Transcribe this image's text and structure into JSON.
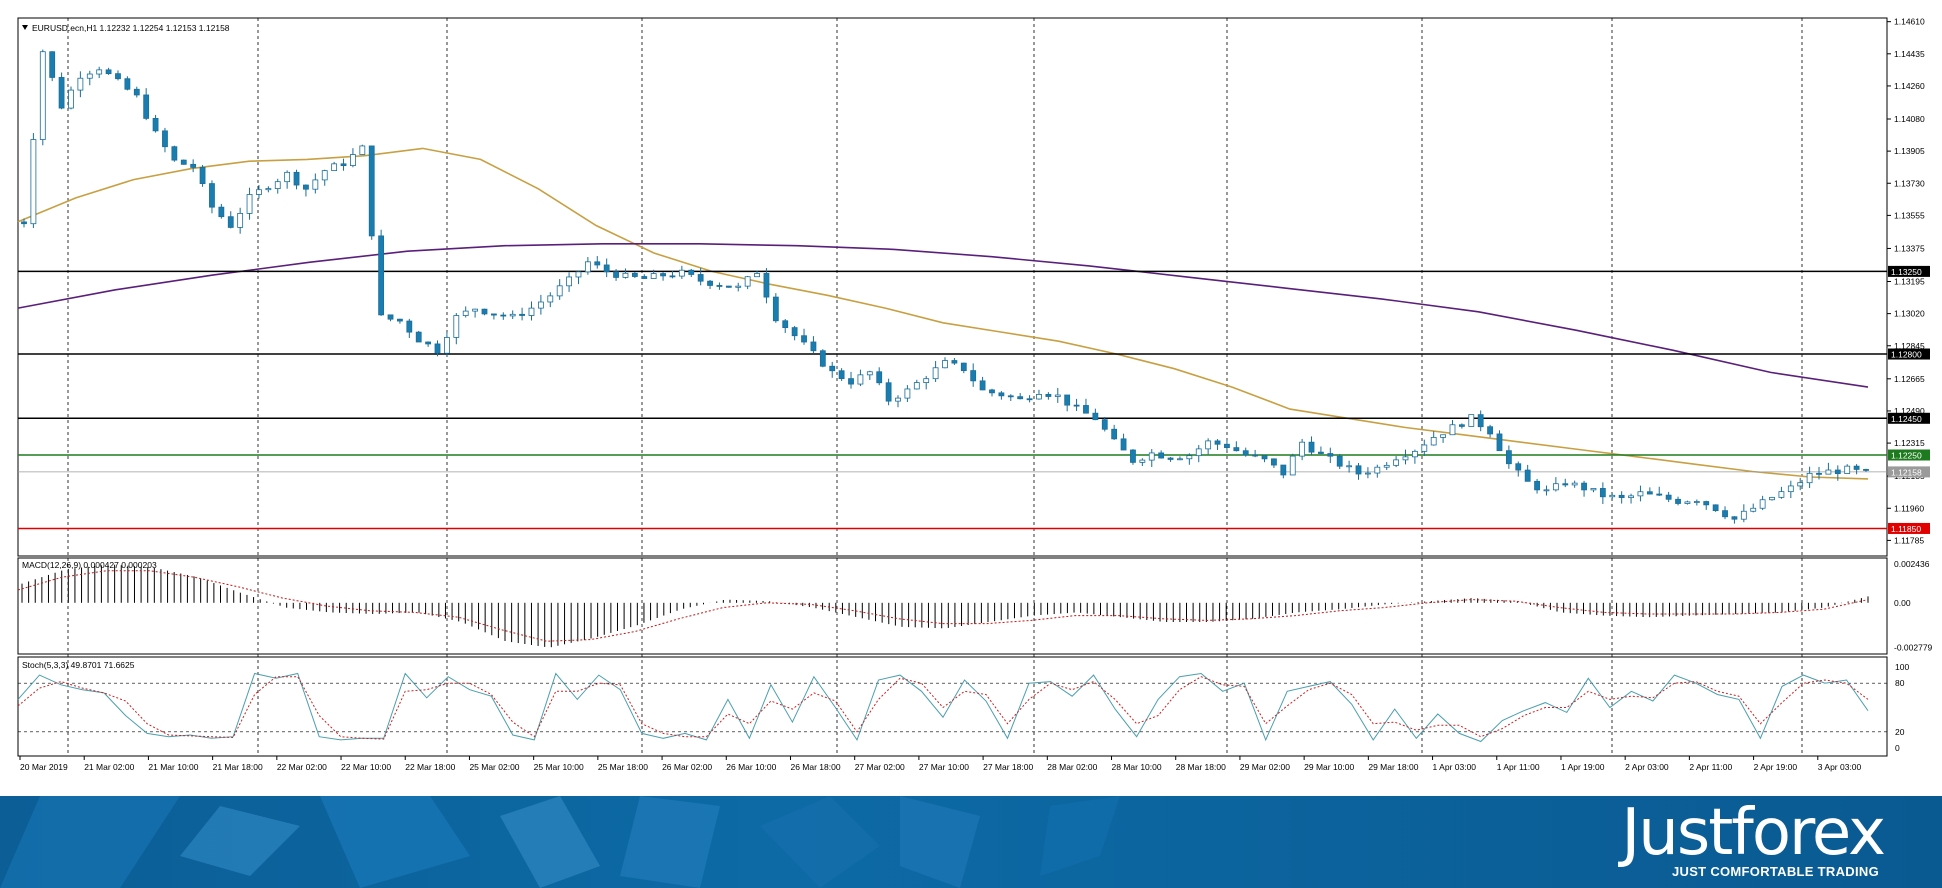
{
  "chart_data": [
    {
      "type": "candlestick",
      "symbol_label": "EURUSD.ecn,H1  1.12232 1.12254 1.12153 1.12158",
      "ohlc": {
        "open": 1.12232,
        "high": 1.12254,
        "low": 1.12153,
        "close": 1.12158
      },
      "ylim": [
        1.117,
        1.1463
      ],
      "y_ticks": [
        "1.14610",
        "1.14435",
        "1.14260",
        "1.14080",
        "1.13905",
        "1.13730",
        "1.13555",
        "1.13375",
        "1.13195",
        "1.13020",
        "1.12845",
        "1.12665",
        "1.12490",
        "1.12315",
        "1.12135",
        "1.11960",
        "1.11785"
      ],
      "x_ticks": [
        "20 Mar 2019",
        "21 Mar 02:00",
        "21 Mar 10:00",
        "21 Mar 18:00",
        "22 Mar 02:00",
        "22 Mar 10:00",
        "22 Mar 18:00",
        "25 Mar 02:00",
        "25 Mar 10:00",
        "25 Mar 18:00",
        "26 Mar 02:00",
        "26 Mar 10:00",
        "26 Mar 18:00",
        "27 Mar 02:00",
        "27 Mar 10:00",
        "27 Mar 18:00",
        "28 Mar 02:00",
        "28 Mar 10:00",
        "28 Mar 18:00",
        "29 Mar 02:00",
        "29 Mar 10:00",
        "29 Mar 18:00",
        "1 Apr 03:00",
        "1 Apr 11:00",
        "1 Apr 19:00",
        "2 Apr 03:00",
        "2 Apr 11:00",
        "2 Apr 19:00",
        "3 Apr 03:00"
      ],
      "price_path": [
        1.1352,
        1.1445,
        1.1415,
        1.1432,
        1.1436,
        1.1428,
        1.142,
        1.14,
        1.1385,
        1.1382,
        1.136,
        1.135,
        1.1365,
        1.1372,
        1.1378,
        1.137,
        1.138,
        1.1384,
        1.1392,
        1.13,
        1.1298,
        1.1288,
        1.1282,
        1.13,
        1.1305,
        1.1302,
        1.13,
        1.1305,
        1.1312,
        1.132,
        1.133,
        1.1325,
        1.1322,
        1.1321,
        1.1323,
        1.1324,
        1.132,
        1.1318,
        1.1316,
        1.1325,
        1.13,
        1.129,
        1.128,
        1.127,
        1.1265,
        1.127,
        1.1255,
        1.126,
        1.1268,
        1.1275,
        1.1272,
        1.126,
        1.1258,
        1.1255,
        1.126,
        1.1257,
        1.125,
        1.1245,
        1.1232,
        1.1222,
        1.1226,
        1.1224,
        1.1225,
        1.1232,
        1.123,
        1.1225,
        1.1222,
        1.1215,
        1.1232,
        1.1225,
        1.122,
        1.1215,
        1.1218,
        1.1224,
        1.1228,
        1.1235,
        1.124,
        1.1245,
        1.1238,
        1.122,
        1.121,
        1.1205,
        1.121,
        1.1207,
        1.1203,
        1.1201,
        1.1204,
        1.1202,
        1.12,
        1.1201,
        1.1196,
        1.119,
        1.1196,
        1.1202,
        1.1207,
        1.1214,
        1.1216,
        1.1217,
        1.1215
      ],
      "horizontal_levels": [
        {
          "label": "1.13250",
          "value": 1.1325,
          "color": "#000000"
        },
        {
          "label": "1.12800",
          "value": 1.128,
          "color": "#000000"
        },
        {
          "label": "1.12450",
          "value": 1.1245,
          "color": "#000000"
        },
        {
          "label": "1.12250",
          "value": 1.1225,
          "color": "#1e7a1e"
        },
        {
          "label": "1.12158",
          "value": 1.12158,
          "color": "#9a9a9a"
        },
        {
          "label": "1.11850",
          "value": 1.1185,
          "color": "#e00000"
        }
      ],
      "moving_averages": [
        {
          "color": "#c8a042",
          "values": [
            1.1352,
            1.1365,
            1.1375,
            1.1381,
            1.1385,
            1.1386,
            1.1388,
            1.1392,
            1.1386,
            1.137,
            1.135,
            1.1335,
            1.1325,
            1.1318,
            1.1312,
            1.1305,
            1.1297,
            1.1292,
            1.1287,
            1.128,
            1.1272,
            1.1262,
            1.125,
            1.1245,
            1.124,
            1.1236,
            1.1232,
            1.1228,
            1.1224,
            1.122,
            1.1216,
            1.1213,
            1.1212
          ]
        },
        {
          "color": "#5a1f7a",
          "values": [
            1.1305,
            1.1315,
            1.1323,
            1.133,
            1.1336,
            1.1339,
            1.134,
            1.134,
            1.1339,
            1.1337,
            1.1333,
            1.1328,
            1.1322,
            1.1316,
            1.131,
            1.1303,
            1.1293,
            1.1282,
            1.127,
            1.1262
          ]
        }
      ]
    },
    {
      "type": "histogram",
      "label": "MACD(12,26,9) 0.000427 0.000203",
      "y_ticks": [
        "0.002436",
        "0.00",
        "-0.002779"
      ],
      "ylim": [
        -0.0032,
        0.0028
      ],
      "histogram": [
        0.0012,
        0.0021,
        0.0024,
        0.0022,
        0.0016,
        0.0006,
        -0.0003,
        -0.0006,
        -0.0007,
        -0.0006,
        -0.0012,
        -0.0024,
        -0.0028,
        -0.0022,
        -0.0014,
        -0.0004,
        0.0002,
        0.0001,
        -0.0003,
        -0.0009,
        -0.0015,
        -0.0016,
        -0.0012,
        -0.0008,
        -0.0006,
        -0.0009,
        -0.0012,
        -0.0012,
        -0.001,
        -0.0006,
        -0.0004,
        -0.0001,
        0.0001,
        0.0003,
        0.0001,
        -0.0006,
        -0.0008,
        -0.0009,
        -0.0008,
        -0.0007,
        -0.0006,
        -0.0003,
        0.0004
      ],
      "signal": [
        0.0008,
        0.0016,
        0.002,
        0.002,
        0.0016,
        0.001,
        0.0003,
        -0.0002,
        -0.0005,
        -0.0006,
        -0.0009,
        -0.0017,
        -0.0024,
        -0.0023,
        -0.0018,
        -0.001,
        -0.0003,
        0.0,
        -0.0001,
        -0.0005,
        -0.001,
        -0.0013,
        -0.0013,
        -0.0011,
        -0.0008,
        -0.0008,
        -0.001,
        -0.0011,
        -0.001,
        -0.0008,
        -0.0005,
        -0.0003,
        0.0,
        0.0002,
        0.0001,
        -0.0003,
        -0.0006,
        -0.0007,
        -0.0007,
        -0.0007,
        -0.0006,
        -0.0004,
        0.0002
      ]
    },
    {
      "type": "line",
      "label": "Stoch(5,3,3) 49.8701 71.6625",
      "y_ticks": [
        "100",
        "80",
        "20",
        "0"
      ],
      "ylim": [
        0,
        100
      ],
      "levels": [
        80,
        20
      ],
      "series": [
        {
          "color": "#4a9fb0",
          "values": [
            60,
            90,
            78,
            72,
            68,
            40,
            18,
            14,
            16,
            12,
            14,
            92,
            86,
            92,
            14,
            10,
            12,
            12,
            92,
            62,
            88,
            72,
            64,
            16,
            10,
            92,
            60,
            90,
            72,
            18,
            12,
            18,
            10,
            60,
            12,
            78,
            32,
            88,
            50,
            10,
            84,
            90,
            70,
            38,
            84,
            58,
            12,
            80,
            82,
            64,
            90,
            48,
            14,
            60,
            88,
            92,
            70,
            80,
            10,
            70,
            76,
            82,
            54,
            10,
            48,
            12,
            42,
            18,
            8,
            34,
            46,
            56,
            44,
            86,
            50,
            70,
            58,
            90,
            80,
            66,
            60,
            12,
            76,
            90,
            80,
            84,
            46
          ]
        },
        {
          "color": "#cc2020",
          "dash": true,
          "values": [
            52,
            74,
            82,
            74,
            68,
            58,
            30,
            16,
            15,
            14,
            13,
            66,
            88,
            88,
            40,
            14,
            12,
            11,
            70,
            72,
            80,
            80,
            66,
            32,
            14,
            70,
            70,
            80,
            78,
            30,
            18,
            14,
            14,
            42,
            30,
            58,
            48,
            68,
            58,
            20,
            60,
            86,
            80,
            50,
            70,
            66,
            30,
            60,
            80,
            72,
            82,
            60,
            30,
            40,
            72,
            88,
            78,
            76,
            30,
            52,
            72,
            80,
            66,
            30,
            32,
            22,
            28,
            28,
            14,
            24,
            40,
            50,
            50,
            70,
            60,
            64,
            62,
            80,
            82,
            70,
            64,
            30,
            56,
            80,
            84,
            80,
            60
          ]
        }
      ]
    }
  ],
  "footer": {
    "brand": "Justforex",
    "slogan": "JUST COMFORTABLE TRADING"
  }
}
